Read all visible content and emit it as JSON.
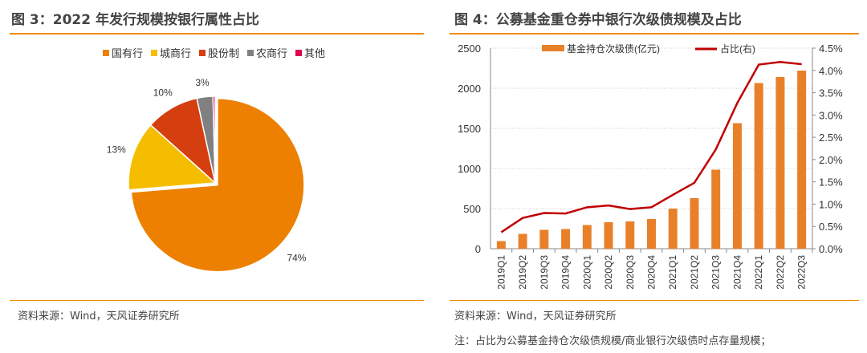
{
  "chart_data": [
    {
      "type": "pie",
      "title": "图 3：2022 年发行规模按银行属性占比",
      "legend_position": "top",
      "labels": [
        "国有行",
        "城商行",
        "股份制",
        "农商行",
        "其他"
      ],
      "values": [
        74,
        13,
        10,
        3,
        0.4
      ],
      "data_labels": [
        "74%",
        "13%",
        "10%",
        "3%",
        ""
      ],
      "colors": [
        "#ed8000",
        "#f5bd00",
        "#d53e0e",
        "#808080",
        "#e0004d"
      ],
      "source": "资料来源：Wind，天风证券研究所"
    },
    {
      "type": "bar+line",
      "title": "图 4：公募基金重仓券中银行次级债规模及占比",
      "categories": [
        "2019Q1",
        "2019Q2",
        "2019Q3",
        "2019Q4",
        "2020Q1",
        "2020Q2",
        "2020Q3",
        "2020Q4",
        "2021Q1",
        "2021Q2",
        "2021Q3",
        "2021Q4",
        "2022Q1",
        "2022Q2",
        "2022Q3"
      ],
      "series": [
        {
          "name": "基金持仓次级债(亿元)",
          "type": "bar",
          "axis": "left",
          "color": "#e8802a",
          "values": [
            95,
            185,
            235,
            245,
            295,
            330,
            340,
            370,
            500,
            630,
            985,
            1565,
            2065,
            2140,
            2220
          ]
        },
        {
          "name": "占比(右)",
          "type": "line",
          "axis": "right",
          "color": "#c00000",
          "values": [
            0.37,
            0.69,
            0.8,
            0.79,
            0.93,
            0.97,
            0.89,
            0.93,
            1.21,
            1.48,
            2.23,
            3.27,
            4.13,
            4.19,
            4.14
          ]
        }
      ],
      "ylim": [
        0,
        2500
      ],
      "yticks": [
        "0",
        "500",
        "1000",
        "1500",
        "2000",
        "2500"
      ],
      "y2lim": [
        0,
        4.5
      ],
      "y2ticks": [
        "0.0%",
        "0.5%",
        "1.0%",
        "1.5%",
        "2.0%",
        "2.5%",
        "3.0%",
        "3.5%",
        "4.0%",
        "4.5%"
      ],
      "grid": true,
      "legend_position": "top",
      "source": "资料来源：Wind，天风证券研究所",
      "note": "注：占比为公募基金持仓次级债规模/商业银行次级债时点存量规模；"
    }
  ]
}
